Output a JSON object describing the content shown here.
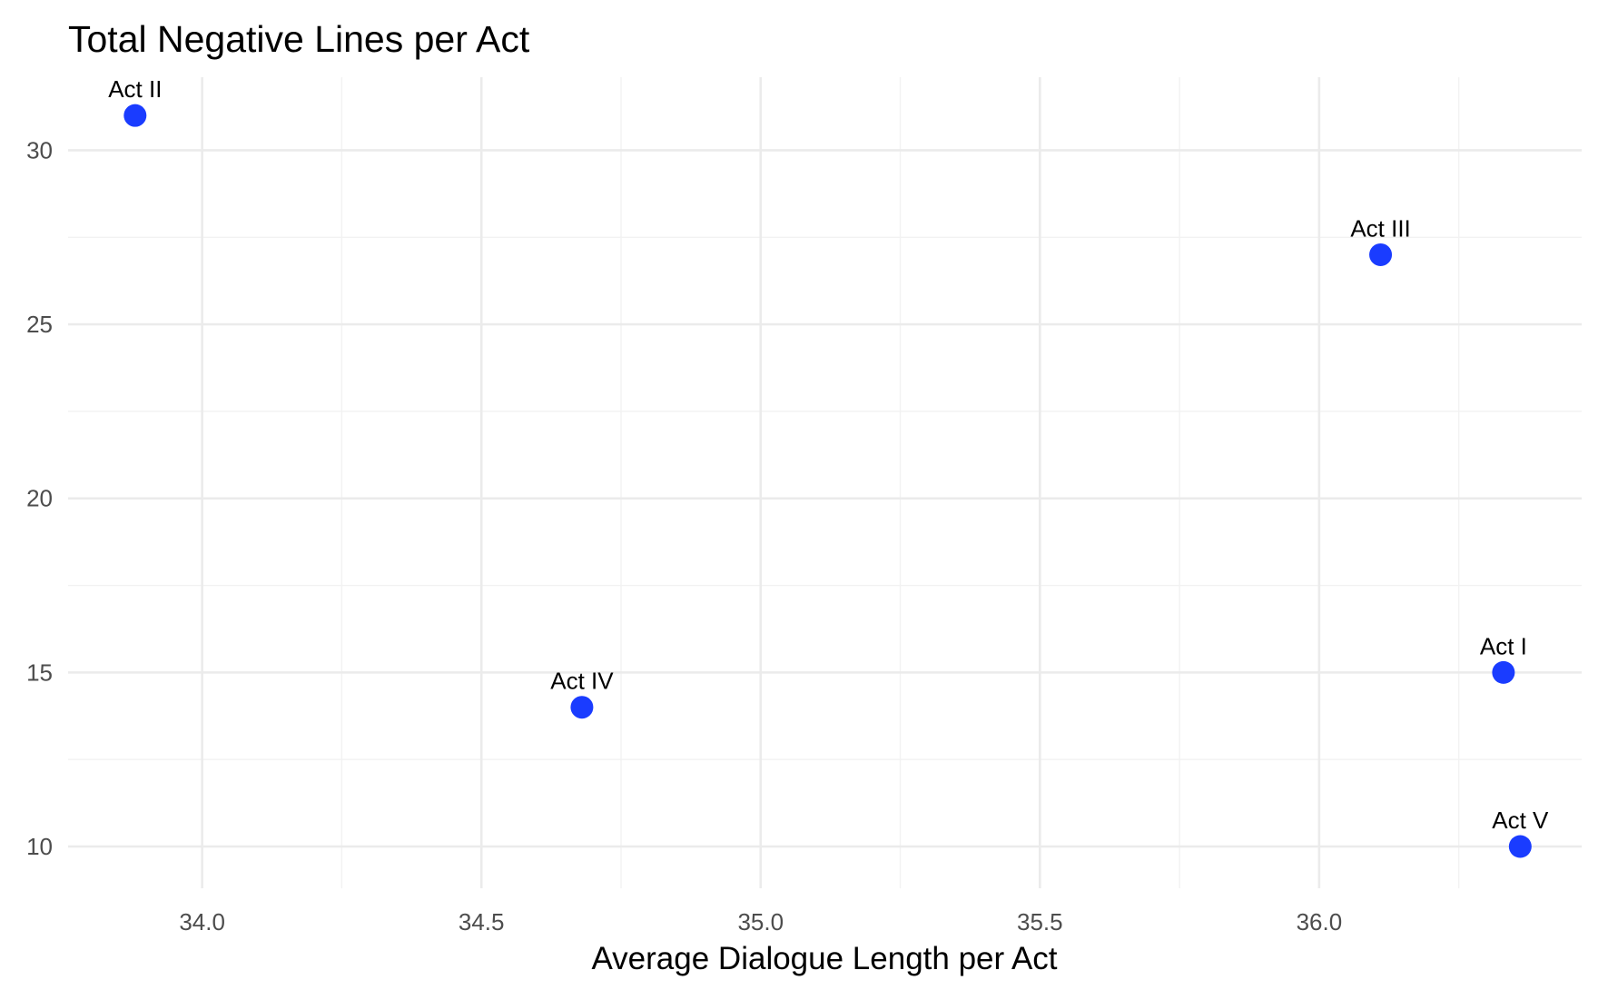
{
  "chart_data": {
    "type": "scatter",
    "title": "Total Negative Lines per Act",
    "xlabel": "Average Dialogue Length per Act",
    "ylabel": "",
    "xlim": [
      33.76,
      36.47
    ],
    "ylim": [
      8.8,
      32.1
    ],
    "xticks": [
      34.0,
      34.5,
      35.0,
      35.5,
      36.0
    ],
    "xtick_labels": [
      "34.0",
      "34.5",
      "35.0",
      "35.5",
      "36.0"
    ],
    "yticks": [
      10,
      15,
      20,
      25,
      30
    ],
    "ytick_labels": [
      "10",
      "15",
      "20",
      "25",
      "30"
    ],
    "grid": true,
    "legend": "none",
    "point_color": "#1a3cff",
    "points": [
      {
        "label": "Act II",
        "x": 33.88,
        "y": 31
      },
      {
        "label": "Act III",
        "x": 36.11,
        "y": 27
      },
      {
        "label": "Act I",
        "x": 36.33,
        "y": 15
      },
      {
        "label": "Act IV",
        "x": 34.68,
        "y": 14
      },
      {
        "label": "Act V",
        "x": 36.36,
        "y": 10
      }
    ]
  }
}
